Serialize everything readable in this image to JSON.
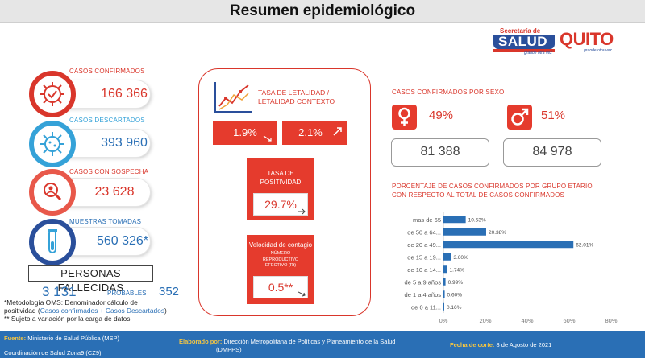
{
  "header": {
    "title": "Resumen epidemiológico"
  },
  "logos": {
    "salud_top": "Secretaría de",
    "salud_main": "SALUD",
    "salud_tag": "grande otra vez",
    "quito": "QUITO",
    "quito_tag": "grande otra vez"
  },
  "kpis": {
    "confirmados": {
      "label": "CASOS CONFIRMADOS",
      "value": "166 366",
      "icon": "virus-check-icon"
    },
    "descartados": {
      "label": "CASOS DESCARTADOS",
      "value": "393 960",
      "icon": "virus-icon"
    },
    "sospecha": {
      "label": "CASOS CON SOSPECHA",
      "value": "23 628",
      "icon": "magnifier-person-icon"
    },
    "muestras": {
      "label": "MUESTRAS TOMADAS",
      "value": "560 326*",
      "icon": "test-tube-icon"
    }
  },
  "deaths": {
    "label": "PERSONAS FALLECIDAS",
    "value": "3 131",
    "probables_label": "PROBABLES",
    "probables_value": "352"
  },
  "notes": {
    "line1": "*Metodología OMS: Denominador cálculo de",
    "line2_a": "positividad (",
    "line2_hl": "Casos confirmados + Casos Descartados",
    "line2_b": ")",
    "line3": "** Sujeto a variación por la carga de datos"
  },
  "middle": {
    "tasa_label_1": "TASA DE LETALIDAD /",
    "tasa_label_2": "LETALIDAD CONTEXTO",
    "letalidad": "1.9%",
    "letalidad_contexto": "2.1%",
    "positividad_label_1": "TASA DE",
    "positividad_label_2": "POSITIVIDAD",
    "positividad": "29.7%",
    "velocidad_label": "Velocidad de contagio",
    "rt_label_1": "NÚMERO",
    "rt_label_2": "REPRODUCTIVO",
    "rt_label_3": "EFECTIVO  (Rt)",
    "rt_value": "0.5**"
  },
  "sex": {
    "title": "CASOS CONFIRMADOS  POR SEXO",
    "female_pct": "49%",
    "female_count": "81 388",
    "male_pct": "51%",
    "male_count": "84 978"
  },
  "age": {
    "title_1": "PORCENTAJE  DE CASOS CONFIRMADOS  POR GRUPO ETARIO",
    "title_2": "CON RESPECTO AL TOTAL DE CASOS CONFIRMADOS"
  },
  "chart_data": {
    "type": "bar",
    "orientation": "horizontal",
    "categories": [
      "mas de 65",
      "de 50 a 64...",
      "de 20 a 49...",
      "de 15 a 19...",
      "de 10 a 14...",
      "de 5 a 9 años",
      "de 1 a 4 años",
      "de 0 a 11..."
    ],
    "values": [
      10.63,
      20.38,
      62.01,
      3.6,
      1.74,
      0.99,
      0.6,
      0.16
    ],
    "value_labels": [
      "10.63%",
      "20.38%",
      "62.01%",
      "3.60%",
      "1.74%",
      "0.99%",
      "0.60%",
      "0.16%"
    ],
    "xlim": [
      0,
      80
    ],
    "xticks": [
      "0%",
      "20%",
      "40%",
      "60%",
      "80%"
    ],
    "bar_color": "#2a6fb5",
    "grid": false
  },
  "footer": {
    "fuente_key": "Fuente:",
    "fuente": "Ministerio de Salud Pública (MSP)",
    "coordinacion": "Coordinación de Salud Zona9 (CZ9)",
    "elaborado_key": "Elaborado por:",
    "elaborado_1": "Dirección Metropolitana de Políticas y Planeamiento de la Salud",
    "elaborado_2": "(DMPPS)",
    "fecha_key": "Fecha de corte:",
    "fecha": "8 de Agosto de 2021"
  },
  "colors": {
    "accent_red": "#d9362b",
    "accent_blue": "#2a6fb5",
    "light_blue": "#35a2d8",
    "footer": "#2a6fb5"
  }
}
